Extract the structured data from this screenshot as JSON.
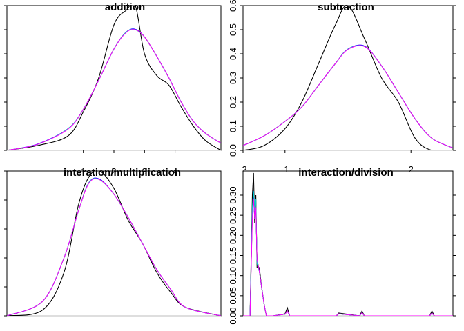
{
  "chart_data": [
    {
      "type": "line",
      "title": "addition",
      "xlim": [
        -1.5,
        5.5
      ],
      "ylim": [
        0,
        0.6
      ],
      "xticks": [
        1,
        2,
        3,
        4
      ],
      "xtick_labels": [
        "1",
        "2",
        "3",
        "4"
      ],
      "yticks": [
        0,
        0.1,
        0.2,
        0.3,
        0.4,
        0.5,
        0.6
      ],
      "ytick_labels": [],
      "x": [
        -1.5,
        -0.5,
        0.5,
        1.0,
        1.5,
        2.0,
        2.4,
        2.7,
        3.0,
        3.4,
        3.8,
        4.2,
        4.6,
        5.0,
        5.5
      ],
      "series": [
        {
          "color": "#000000",
          "values": [
            0.0,
            0.02,
            0.06,
            0.16,
            0.3,
            0.52,
            0.58,
            0.6,
            0.4,
            0.31,
            0.27,
            0.18,
            0.1,
            0.04,
            0.0
          ]
        },
        {
          "color": "#ff0000",
          "values": [
            0.0,
            0.025,
            0.09,
            0.17,
            0.29,
            0.42,
            0.49,
            0.5,
            0.47,
            0.39,
            0.3,
            0.2,
            0.12,
            0.07,
            0.03
          ]
        },
        {
          "color": "#00cd00",
          "values": [
            0.0,
            0.025,
            0.09,
            0.17,
            0.29,
            0.42,
            0.49,
            0.5,
            0.47,
            0.39,
            0.3,
            0.2,
            0.12,
            0.07,
            0.03
          ]
        },
        {
          "color": "#0000ff",
          "values": [
            0.0,
            0.026,
            0.09,
            0.17,
            0.29,
            0.42,
            0.49,
            0.502,
            0.47,
            0.39,
            0.3,
            0.2,
            0.12,
            0.07,
            0.03
          ]
        },
        {
          "color": "#00cdcd",
          "values": [
            0.0,
            0.025,
            0.09,
            0.17,
            0.29,
            0.42,
            0.49,
            0.5,
            0.47,
            0.39,
            0.3,
            0.2,
            0.12,
            0.07,
            0.03
          ]
        },
        {
          "color": "#ff00ff",
          "values": [
            0.0,
            0.025,
            0.088,
            0.17,
            0.29,
            0.42,
            0.488,
            0.5,
            0.47,
            0.39,
            0.3,
            0.2,
            0.12,
            0.07,
            0.03
          ]
        }
      ],
      "baseline": 0,
      "grid": false,
      "legend": "none"
    },
    {
      "type": "line",
      "title": "subtraction",
      "xlim": [
        -2.0,
        3.0
      ],
      "ylim": [
        0,
        0.6
      ],
      "xticks": [
        -2,
        -1,
        2
      ],
      "xtick_labels": [
        "-2",
        "-1",
        "2"
      ],
      "yticks": [
        0,
        0.1,
        0.2,
        0.3,
        0.4,
        0.5,
        0.6
      ],
      "ytick_labels": [
        "0.0",
        "0.1",
        "0.2",
        "0.3",
        "0.4",
        "0.5",
        "0.6"
      ],
      "x": [
        -2.0,
        -1.5,
        -1.0,
        -0.6,
        -0.2,
        0.2,
        0.5,
        0.9,
        1.3,
        1.7,
        2.1,
        2.5,
        3.0
      ],
      "series": [
        {
          "color": "#000000",
          "values": [
            0.0,
            0.02,
            0.09,
            0.2,
            0.36,
            0.52,
            0.6,
            0.46,
            0.3,
            0.2,
            0.05,
            0.0,
            0.0
          ]
        },
        {
          "color": "#ff0000",
          "values": [
            0.02,
            0.06,
            0.12,
            0.18,
            0.27,
            0.36,
            0.42,
            0.43,
            0.35,
            0.24,
            0.13,
            0.05,
            0.01
          ]
        },
        {
          "color": "#00cd00",
          "values": [
            0.02,
            0.06,
            0.12,
            0.18,
            0.27,
            0.36,
            0.42,
            0.43,
            0.35,
            0.24,
            0.13,
            0.05,
            0.01
          ]
        },
        {
          "color": "#0000ff",
          "values": [
            0.02,
            0.06,
            0.12,
            0.18,
            0.27,
            0.36,
            0.42,
            0.432,
            0.35,
            0.24,
            0.13,
            0.05,
            0.01
          ]
        },
        {
          "color": "#00cdcd",
          "values": [
            0.02,
            0.06,
            0.12,
            0.18,
            0.27,
            0.36,
            0.42,
            0.43,
            0.35,
            0.24,
            0.13,
            0.05,
            0.01
          ]
        },
        {
          "color": "#ff00ff",
          "values": [
            0.02,
            0.06,
            0.12,
            0.18,
            0.27,
            0.36,
            0.418,
            0.43,
            0.35,
            0.24,
            0.13,
            0.05,
            0.01
          ]
        }
      ],
      "baseline": 0,
      "grid": false,
      "legend": "none"
    },
    {
      "type": "line",
      "title": "interation/multiplication",
      "xlim": [
        0,
        6
      ],
      "ylim": [
        0,
        0.5
      ],
      "xticks": [],
      "xtick_labels": [],
      "yticks": [
        0,
        0.1,
        0.2,
        0.3,
        0.4,
        0.5
      ],
      "ytick_labels": [],
      "x": [
        0.0,
        1.0,
        1.6,
        2.0,
        2.3,
        2.6,
        3.0,
        3.4,
        3.8,
        4.2,
        4.6,
        5.0,
        6.0
      ],
      "series": [
        {
          "color": "#000000",
          "values": [
            0.0,
            0.02,
            0.15,
            0.38,
            0.48,
            0.5,
            0.44,
            0.33,
            0.25,
            0.15,
            0.08,
            0.03,
            0.0
          ]
        },
        {
          "color": "#ff0000",
          "values": [
            0.0,
            0.05,
            0.2,
            0.36,
            0.46,
            0.47,
            0.42,
            0.34,
            0.25,
            0.16,
            0.09,
            0.03,
            0.0
          ]
        },
        {
          "color": "#00cd00",
          "values": [
            0.0,
            0.05,
            0.2,
            0.36,
            0.46,
            0.47,
            0.42,
            0.34,
            0.25,
            0.16,
            0.09,
            0.03,
            0.0
          ]
        },
        {
          "color": "#0000ff",
          "values": [
            0.0,
            0.05,
            0.2,
            0.36,
            0.46,
            0.472,
            0.42,
            0.34,
            0.25,
            0.16,
            0.09,
            0.03,
            0.0
          ]
        },
        {
          "color": "#00cdcd",
          "values": [
            0.0,
            0.05,
            0.2,
            0.36,
            0.46,
            0.47,
            0.42,
            0.34,
            0.25,
            0.16,
            0.09,
            0.03,
            0.0
          ]
        },
        {
          "color": "#ff00ff",
          "values": [
            0.0,
            0.05,
            0.2,
            0.36,
            0.458,
            0.47,
            0.42,
            0.34,
            0.25,
            0.16,
            0.09,
            0.03,
            0.0
          ]
        }
      ],
      "baseline": 0,
      "grid": false,
      "legend": "none"
    },
    {
      "type": "line",
      "title": "interaction/division",
      "xlim": [
        0,
        90
      ],
      "ylim": [
        0,
        0.36
      ],
      "xticks": [],
      "xtick_labels": [],
      "yticks": [
        0,
        0.05,
        0.1,
        0.15,
        0.2,
        0.25,
        0.3
      ],
      "ytick_labels": [
        "0.00",
        "0.05",
        "0.10",
        "0.15",
        "0.20",
        "0.25",
        "0.30"
      ],
      "x": [
        0,
        3,
        4,
        4.5,
        5,
        5.5,
        6,
        7,
        8,
        9,
        10,
        13,
        18,
        19,
        20,
        40,
        41,
        50,
        51,
        52,
        80,
        81,
        82,
        90
      ],
      "series": [
        {
          "color": "#000000",
          "values": [
            0,
            0,
            0.3,
            0.355,
            0.23,
            0.3,
            0.12,
            0.12,
            0.07,
            0.03,
            0.0,
            0.0,
            0.005,
            0.02,
            0.0,
            0.0,
            0.007,
            0.0,
            0.012,
            0.0,
            0.0,
            0.012,
            0.0,
            0.0
          ]
        },
        {
          "color": "#ff0000",
          "values": [
            0,
            0,
            0.26,
            0.29,
            0.25,
            0.28,
            0.14,
            0.11,
            0.07,
            0.03,
            0.0,
            0.0,
            0.004,
            0.012,
            0.0,
            0.0,
            0.005,
            0.0,
            0.008,
            0.0,
            0.0,
            0.007,
            0.0,
            0.0
          ]
        },
        {
          "color": "#00cd00",
          "values": [
            0,
            0,
            0.25,
            0.3,
            0.24,
            0.27,
            0.14,
            0.11,
            0.07,
            0.03,
            0.0,
            0.0,
            0.004,
            0.012,
            0.0,
            0.0,
            0.005,
            0.0,
            0.008,
            0.0,
            0.0,
            0.007,
            0.0,
            0.0
          ]
        },
        {
          "color": "#0000ff",
          "values": [
            0,
            0,
            0.26,
            0.31,
            0.24,
            0.27,
            0.14,
            0.11,
            0.07,
            0.03,
            0.0,
            0.0,
            0.004,
            0.012,
            0.0,
            0.0,
            0.005,
            0.0,
            0.008,
            0.0,
            0.0,
            0.007,
            0.0,
            0.0
          ]
        },
        {
          "color": "#00cdcd",
          "values": [
            0,
            0,
            0.27,
            0.31,
            0.26,
            0.29,
            0.13,
            0.11,
            0.07,
            0.03,
            0.0,
            0.0,
            0.004,
            0.012,
            0.0,
            0.0,
            0.005,
            0.0,
            0.008,
            0.0,
            0.0,
            0.007,
            0.0,
            0.0
          ]
        },
        {
          "color": "#ff00ff",
          "values": [
            0,
            0,
            0.24,
            0.29,
            0.24,
            0.27,
            0.14,
            0.11,
            0.07,
            0.03,
            0.0,
            0.0,
            0.004,
            0.012,
            0.0,
            0.0,
            0.005,
            0.0,
            0.008,
            0.0,
            0.0,
            0.007,
            0.0,
            0.0
          ]
        }
      ],
      "baseline": 0,
      "grid": false,
      "legend": "none"
    }
  ],
  "style": {
    "axis_color": "#000000",
    "baseline_color": "#bebebe"
  }
}
